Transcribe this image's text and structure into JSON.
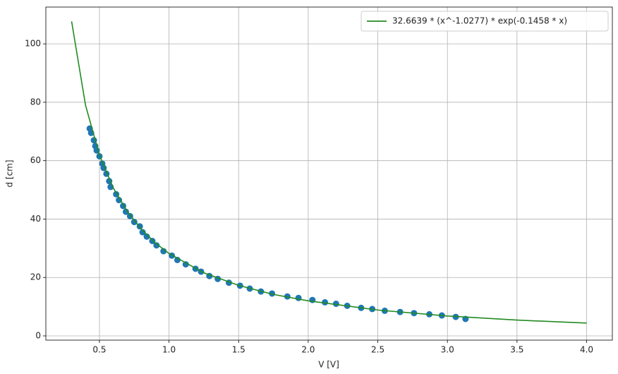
{
  "chart_data": {
    "type": "scatter",
    "xlabel": "V [V]",
    "ylabel": "d [cm]",
    "xlim": [
      0.115,
      4.185
    ],
    "ylim": [
      -1.45,
      112.6
    ],
    "xticks": [
      0.5,
      {
        "value": 1.0,
        "label": "1.0"
      },
      1.5,
      {
        "value": 2.0,
        "label": "2.0"
      },
      2.5,
      {
        "value": 3.0,
        "label": "3.0"
      },
      3.5,
      {
        "value": 4.0,
        "label": "4.0"
      }
    ],
    "yticks": [
      0,
      20,
      40,
      60,
      80,
      100
    ],
    "grid": true,
    "legend": "upper right",
    "series": [
      {
        "name": "32.6639 * (x^-1.0277) * exp(-0.1458 * x)",
        "kind": "line",
        "color": "#228b22",
        "x": [
          0.3,
          0.4,
          0.5,
          0.6,
          0.7,
          0.8,
          0.9,
          1.0,
          1.25,
          1.5,
          1.75,
          2.0,
          2.5,
          3.0,
          3.5,
          4.0
        ],
        "values": [
          107.7,
          79.0,
          61.9,
          50.6,
          42.6,
          36.6,
          31.9,
          28.2,
          21.6,
          17.3,
          14.2,
          12.0,
          8.85,
          6.82,
          5.41,
          4.39
        ]
      },
      {
        "kind": "points",
        "color": "#1f77b4",
        "x": [
          0.43,
          0.44,
          0.46,
          0.47,
          0.48,
          0.5,
          0.52,
          0.53,
          0.55,
          0.57,
          0.58,
          0.62,
          0.64,
          0.67,
          0.69,
          0.72,
          0.75,
          0.79,
          0.81,
          0.84,
          0.88,
          0.91,
          0.96,
          1.02,
          1.06,
          1.12,
          1.19,
          1.23,
          1.29,
          1.35,
          1.43,
          1.51,
          1.58,
          1.66,
          1.74,
          1.85,
          1.93,
          2.03,
          2.12,
          2.2,
          2.28,
          2.38,
          2.46,
          2.55,
          2.66,
          2.76,
          2.87,
          2.96,
          3.06,
          3.13
        ],
        "values": [
          71,
          69.5,
          67,
          65,
          63.5,
          61.5,
          59,
          57.5,
          55.5,
          53,
          51,
          48.5,
          46.5,
          44.5,
          42.5,
          41,
          39,
          37.5,
          35.5,
          34,
          32.5,
          31,
          29,
          27.5,
          26,
          24.5,
          23,
          22,
          20.5,
          19.5,
          18.2,
          17.2,
          16.2,
          15.2,
          14.5,
          13.5,
          13,
          12.3,
          11.5,
          11,
          10.3,
          9.6,
          9.2,
          8.6,
          8.2,
          7.8,
          7.4,
          7,
          6.5,
          5.8
        ]
      }
    ]
  }
}
